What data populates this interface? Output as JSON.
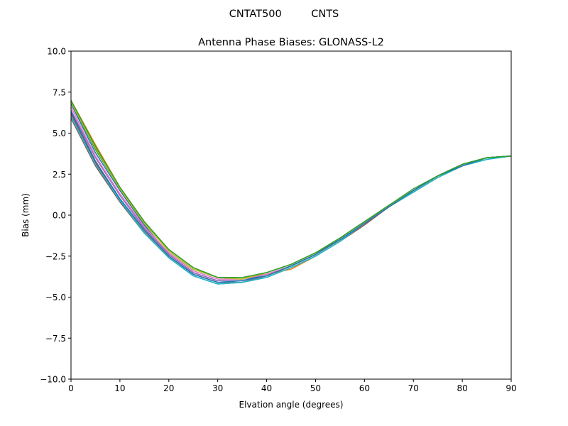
{
  "figure": {
    "suptitle": "CNTAT500         CNTS"
  },
  "chart_data": {
    "type": "line",
    "title": "Antenna Phase Biases: GLONASS-L2",
    "xlabel": "Elvation angle (degrees)",
    "ylabel": "Bias (mm)",
    "xlim": [
      0,
      90
    ],
    "ylim": [
      -10,
      10
    ],
    "xticks": [
      0,
      10,
      20,
      30,
      40,
      50,
      60,
      70,
      80,
      90
    ],
    "yticks": [
      -10.0,
      -7.5,
      -5.0,
      -2.5,
      0.0,
      2.5,
      5.0,
      7.5,
      10.0
    ],
    "xtick_labels": [
      "0",
      "10",
      "20",
      "30",
      "40",
      "50",
      "60",
      "70",
      "80",
      "90"
    ],
    "ytick_labels": [
      "−10.0",
      "−7.5",
      "−5.0",
      "−2.5",
      "0.0",
      "2.5",
      "5.0",
      "7.5",
      "10.0"
    ],
    "grid": false,
    "legend": "none",
    "x": [
      0,
      5,
      10,
      15,
      20,
      25,
      30,
      35,
      40,
      45,
      50,
      55,
      60,
      65,
      70,
      75,
      80,
      85,
      90
    ],
    "series": [
      {
        "color": "#1f77b4",
        "values": [
          6.8,
          3.8,
          1.5,
          -0.6,
          -2.4,
          -3.5,
          -4.0,
          -4.0,
          -3.6,
          -3.1,
          -2.4,
          -1.4,
          -0.4,
          0.6,
          1.5,
          2.4,
          3.1,
          3.5,
          3.6
        ]
      },
      {
        "color": "#ff7f0e",
        "values": [
          7.0,
          4.3,
          1.7,
          -0.4,
          -2.1,
          -3.2,
          -3.8,
          -3.8,
          -3.6,
          -3.3,
          -2.5,
          -1.6,
          -0.5,
          0.5,
          1.4,
          2.3,
          3.0,
          3.5,
          3.6
        ]
      },
      {
        "color": "#2ca02c",
        "values": [
          6.9,
          4.0,
          1.6,
          -0.5,
          -2.2,
          -3.3,
          -3.8,
          -3.9,
          -3.5,
          -3.0,
          -2.3,
          -1.4,
          -0.4,
          0.6,
          1.5,
          2.4,
          3.0,
          3.5,
          3.6
        ]
      },
      {
        "color": "#d62728",
        "values": [
          6.2,
          3.2,
          0.9,
          -1.0,
          -2.5,
          -3.6,
          -4.1,
          -4.1,
          -3.7,
          -3.1,
          -2.4,
          -1.5,
          -0.5,
          0.5,
          1.5,
          2.4,
          3.0,
          3.5,
          3.6
        ]
      },
      {
        "color": "#9467bd",
        "values": [
          6.4,
          3.5,
          1.2,
          -0.8,
          -2.4,
          -3.5,
          -4.0,
          -4.0,
          -3.7,
          -3.1,
          -2.4,
          -1.5,
          -0.5,
          0.5,
          1.5,
          2.4,
          3.0,
          3.5,
          3.6
        ]
      },
      {
        "color": "#8c564b",
        "values": [
          5.9,
          3.0,
          0.8,
          -1.1,
          -2.6,
          -3.7,
          -4.2,
          -4.1,
          -3.8,
          -3.2,
          -2.5,
          -1.6,
          -0.6,
          0.5,
          1.4,
          2.3,
          3.0,
          3.4,
          3.6
        ]
      },
      {
        "color": "#e377c2",
        "values": [
          6.6,
          3.6,
          1.3,
          -0.7,
          -2.3,
          -3.4,
          -3.9,
          -3.9,
          -3.6,
          -3.1,
          -2.4,
          -1.5,
          -0.5,
          0.6,
          1.5,
          2.4,
          3.1,
          3.5,
          3.6
        ]
      },
      {
        "color": "#7f7f7f",
        "values": [
          6.1,
          3.1,
          0.9,
          -1.0,
          -2.5,
          -3.6,
          -4.1,
          -4.1,
          -3.7,
          -3.1,
          -2.4,
          -1.5,
          -0.5,
          0.5,
          1.5,
          2.4,
          3.0,
          3.5,
          3.6
        ]
      },
      {
        "color": "#bcbd22",
        "values": [
          6.9,
          4.1,
          1.6,
          -0.5,
          -2.2,
          -3.3,
          -3.8,
          -3.9,
          -3.5,
          -3.0,
          -2.3,
          -1.4,
          -0.4,
          0.6,
          1.5,
          2.4,
          3.0,
          3.5,
          3.6
        ]
      },
      {
        "color": "#17becf",
        "values": [
          6.0,
          3.1,
          0.9,
          -1.1,
          -2.6,
          -3.7,
          -4.2,
          -4.1,
          -3.8,
          -3.2,
          -2.5,
          -1.6,
          -0.5,
          0.5,
          1.4,
          2.3,
          3.0,
          3.4,
          3.6
        ]
      },
      {
        "color": "#1f77b4",
        "values": [
          6.3,
          3.3,
          1.0,
          -0.9,
          -2.5,
          -3.6,
          -4.1,
          -4.0,
          -3.7,
          -3.1,
          -2.4,
          -1.5,
          -0.5,
          0.5,
          1.5,
          2.4,
          3.0,
          3.5,
          3.6
        ]
      },
      {
        "color": "#2ca02c",
        "values": [
          7.0,
          4.2,
          1.7,
          -0.4,
          -2.1,
          -3.2,
          -3.8,
          -3.8,
          -3.5,
          -3.0,
          -2.3,
          -1.4,
          -0.4,
          0.6,
          1.6,
          2.4,
          3.1,
          3.5,
          3.6
        ]
      }
    ]
  }
}
